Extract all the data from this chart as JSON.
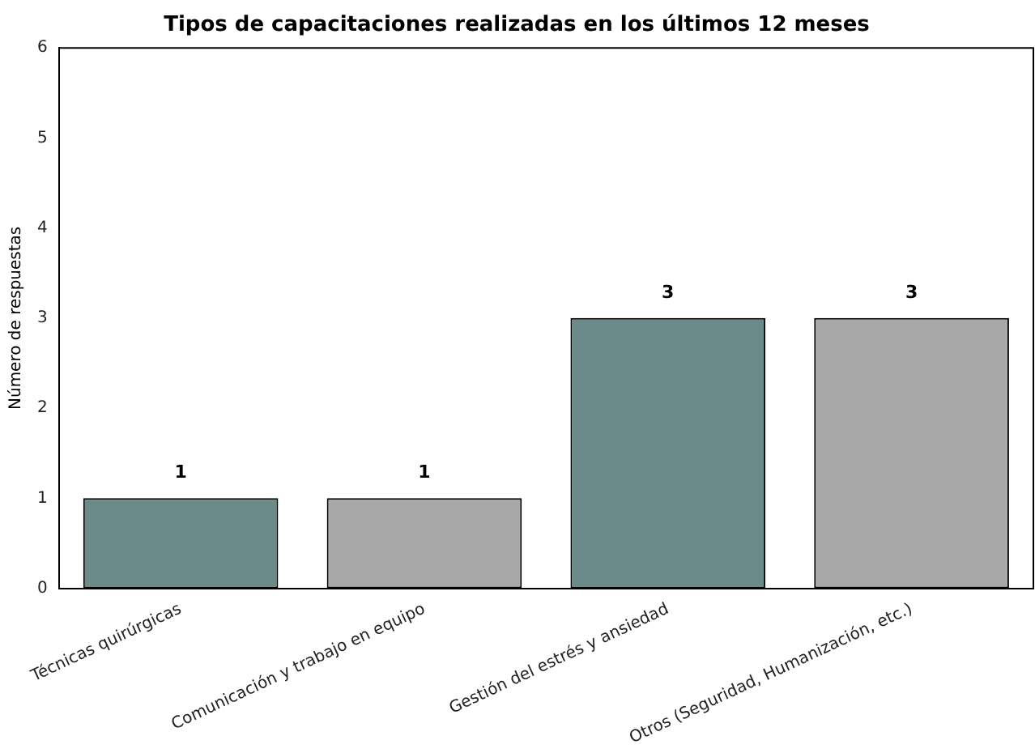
{
  "chart_data": {
    "type": "bar",
    "title": "Tipos de capacitaciones realizadas en los últimos 12 meses",
    "ylabel": "Número de respuestas",
    "categories": [
      "Técnicas quirúrgicas",
      "Comunicación y trabajo en equipo",
      "Gestión del estrés y ansiedad",
      "Otros (Seguridad, Humanización, etc.)"
    ],
    "values": [
      1,
      1,
      3,
      3
    ],
    "colors": [
      "#6a8b89",
      "#a8a8a8",
      "#6a8b89",
      "#a8a8a8"
    ],
    "ylim": [
      0,
      6
    ],
    "yticks": [
      0,
      1,
      2,
      3,
      4,
      5,
      6
    ],
    "grid": false,
    "legend": false,
    "data_labels": true
  }
}
